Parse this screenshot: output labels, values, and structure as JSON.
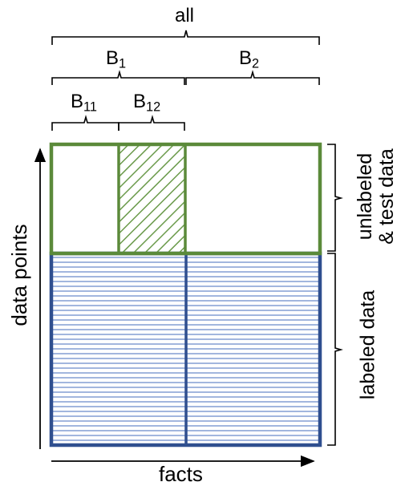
{
  "labels": {
    "all": "all",
    "b1": {
      "base": "B",
      "sub": "1"
    },
    "b2": {
      "base": "B",
      "sub": "2"
    },
    "b11": {
      "base": "B",
      "sub": "11"
    },
    "b12": {
      "base": "B",
      "sub": "12"
    },
    "y_axis": "data points",
    "x_axis": "facts",
    "unlabeled_line1": "unlabeled",
    "unlabeled_line2": "& test data",
    "labeled": "labeled data"
  },
  "colors": {
    "green_border": "#5b8a3a",
    "green_hatch": "#6a9a4a",
    "blue_border": "#2f4f8f",
    "blue_stripe": "#8ba3d6",
    "black": "#000000"
  }
}
